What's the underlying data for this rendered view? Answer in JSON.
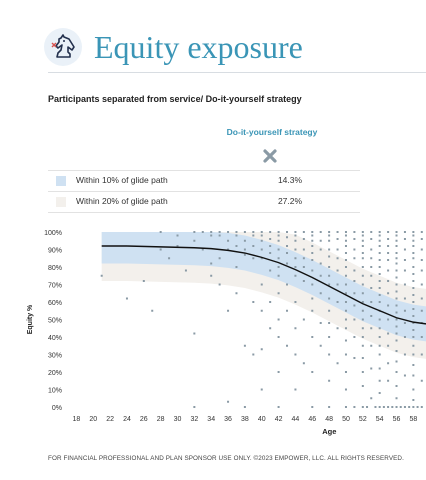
{
  "header": {
    "title": "Equity exposure",
    "logo_icon": "chess-knight-icon"
  },
  "subtitle": "Participants separated from service/ Do-it-yourself strategy",
  "table": {
    "column_header": "Do-it-yourself strategy",
    "column_icon": "x-mark-icon",
    "rows": [
      {
        "label": "Within 10% of glide path",
        "value": "14.3%",
        "color": "#cfe1f2"
      },
      {
        "label": "Within 20% of glide path",
        "value": "27.2%",
        "color": "#f3f0ec"
      }
    ]
  },
  "chart_data": {
    "type": "scatter",
    "ylabel": "Equity %",
    "xlabel": "Age",
    "xlim": [
      17,
      59.5
    ],
    "ylim": [
      0,
      100
    ],
    "x_ticks": [
      18,
      20,
      22,
      24,
      26,
      28,
      30,
      32,
      34,
      36,
      38,
      40,
      42,
      44,
      46,
      48,
      50,
      52,
      54,
      56,
      58
    ],
    "x_tick_labels": [
      "18",
      "20",
      "22",
      "24",
      "26",
      "28",
      "30",
      "32",
      "34",
      "36",
      "38",
      "40",
      "42",
      "44",
      "46",
      "48",
      "50",
      "52",
      "54",
      "56",
      "58"
    ],
    "y_ticks": [
      0,
      10,
      20,
      30,
      40,
      50,
      60,
      70,
      80,
      90,
      100
    ],
    "y_tick_labels": [
      "0%",
      "10%",
      "20%",
      "30%",
      "40%",
      "50%",
      "60%",
      "70%",
      "80%",
      "90%",
      "100%"
    ],
    "colors": {
      "glide_line": "#111111",
      "band_10": "#cfe1f2",
      "band_20": "#f3f0ec",
      "points": "#8a9aa5"
    },
    "glide_path": {
      "x": [
        21,
        24,
        28,
        32,
        34,
        36,
        38,
        40,
        42,
        44,
        46,
        48,
        50,
        52,
        54,
        56,
        58,
        59.5
      ],
      "y": [
        92,
        92,
        91.5,
        91,
        90.5,
        89.5,
        88,
        85.5,
        82.5,
        78.5,
        74,
        69,
        64,
        59,
        55,
        51,
        48.5,
        47.5
      ]
    },
    "band_10_halfwidth": 10,
    "band_20_halfwidth": 20,
    "points": [
      [
        21,
        75
      ],
      [
        24,
        62
      ],
      [
        26,
        72
      ],
      [
        27,
        55
      ],
      [
        28,
        100
      ],
      [
        28,
        90
      ],
      [
        29,
        85
      ],
      [
        30,
        98
      ],
      [
        30,
        92
      ],
      [
        31,
        78
      ],
      [
        32,
        100
      ],
      [
        32,
        95
      ],
      [
        32,
        42
      ],
      [
        32,
        0
      ],
      [
        33,
        100
      ],
      [
        33,
        90
      ],
      [
        34,
        100
      ],
      [
        34,
        98
      ],
      [
        34,
        82
      ],
      [
        34,
        75
      ],
      [
        35,
        100
      ],
      [
        35,
        98
      ],
      [
        35,
        85
      ],
      [
        35,
        70
      ],
      [
        36,
        100
      ],
      [
        36,
        95
      ],
      [
        36,
        90
      ],
      [
        36,
        55
      ],
      [
        36,
        3
      ],
      [
        37,
        100
      ],
      [
        37,
        98
      ],
      [
        37,
        92
      ],
      [
        37,
        80
      ],
      [
        37,
        65
      ],
      [
        38,
        100
      ],
      [
        38,
        95
      ],
      [
        38,
        90
      ],
      [
        38,
        87
      ],
      [
        38,
        35
      ],
      [
        38,
        0
      ],
      [
        39,
        100
      ],
      [
        39,
        98
      ],
      [
        39,
        92
      ],
      [
        39,
        85
      ],
      [
        39,
        60
      ],
      [
        39,
        30
      ],
      [
        40,
        100
      ],
      [
        40,
        98
      ],
      [
        40,
        95
      ],
      [
        40,
        90
      ],
      [
        40,
        85
      ],
      [
        40,
        70
      ],
      [
        40,
        55
      ],
      [
        40,
        33
      ],
      [
        40,
        10
      ],
      [
        41,
        100
      ],
      [
        41,
        96
      ],
      [
        41,
        92
      ],
      [
        41,
        88
      ],
      [
        41,
        78
      ],
      [
        41,
        60
      ],
      [
        41,
        45
      ],
      [
        42,
        100
      ],
      [
        42,
        98
      ],
      [
        42,
        95
      ],
      [
        42,
        90
      ],
      [
        42,
        85
      ],
      [
        42,
        80
      ],
      [
        42,
        75
      ],
      [
        42,
        65
      ],
      [
        42,
        50
      ],
      [
        42,
        40
      ],
      [
        42,
        20
      ],
      [
        42,
        0
      ],
      [
        43,
        100
      ],
      [
        43,
        97
      ],
      [
        43,
        92
      ],
      [
        43,
        88
      ],
      [
        43,
        82
      ],
      [
        43,
        70
      ],
      [
        43,
        55
      ],
      [
        43,
        35
      ],
      [
        44,
        100
      ],
      [
        44,
        98
      ],
      [
        44,
        95
      ],
      [
        44,
        90
      ],
      [
        44,
        85
      ],
      [
        44,
        80
      ],
      [
        44,
        75
      ],
      [
        44,
        60
      ],
      [
        44,
        45
      ],
      [
        44,
        30
      ],
      [
        44,
        10
      ],
      [
        45,
        100
      ],
      [
        45,
        96
      ],
      [
        45,
        90
      ],
      [
        45,
        85
      ],
      [
        45,
        80
      ],
      [
        45,
        72
      ],
      [
        45,
        50
      ],
      [
        45,
        25
      ],
      [
        46,
        100
      ],
      [
        46,
        98
      ],
      [
        46,
        95
      ],
      [
        46,
        92
      ],
      [
        46,
        88
      ],
      [
        46,
        84
      ],
      [
        46,
        78
      ],
      [
        46,
        70
      ],
      [
        46,
        62
      ],
      [
        46,
        55
      ],
      [
        46,
        40
      ],
      [
        46,
        20
      ],
      [
        46,
        0
      ],
      [
        47,
        100
      ],
      [
        47,
        95
      ],
      [
        47,
        90
      ],
      [
        47,
        82
      ],
      [
        47,
        75
      ],
      [
        47,
        65
      ],
      [
        47,
        48
      ],
      [
        47,
        35
      ],
      [
        48,
        100
      ],
      [
        48,
        98
      ],
      [
        48,
        95
      ],
      [
        48,
        90
      ],
      [
        48,
        86
      ],
      [
        48,
        80
      ],
      [
        48,
        75
      ],
      [
        48,
        70
      ],
      [
        48,
        62
      ],
      [
        48,
        55
      ],
      [
        48,
        48
      ],
      [
        48,
        40
      ],
      [
        48,
        30
      ],
      [
        48,
        15
      ],
      [
        48,
        0
      ],
      [
        49,
        100
      ],
      [
        49,
        96
      ],
      [
        49,
        90
      ],
      [
        49,
        85
      ],
      [
        49,
        78
      ],
      [
        49,
        70
      ],
      [
        49,
        60
      ],
      [
        49,
        45
      ],
      [
        49,
        25
      ],
      [
        50,
        100
      ],
      [
        50,
        98
      ],
      [
        50,
        95
      ],
      [
        50,
        92
      ],
      [
        50,
        88
      ],
      [
        50,
        84
      ],
      [
        50,
        80
      ],
      [
        50,
        75
      ],
      [
        50,
        70
      ],
      [
        50,
        65
      ],
      [
        50,
        60
      ],
      [
        50,
        55
      ],
      [
        50,
        50
      ],
      [
        50,
        45
      ],
      [
        50,
        38
      ],
      [
        50,
        30
      ],
      [
        50,
        20
      ],
      [
        50,
        10
      ],
      [
        50,
        0
      ],
      [
        51,
        100
      ],
      [
        51,
        96
      ],
      [
        51,
        90
      ],
      [
        51,
        85
      ],
      [
        51,
        78
      ],
      [
        51,
        72
      ],
      [
        51,
        65
      ],
      [
        51,
        58
      ],
      [
        51,
        50
      ],
      [
        51,
        40
      ],
      [
        51,
        28
      ],
      [
        51,
        0
      ],
      [
        52,
        100
      ],
      [
        52,
        98
      ],
      [
        52,
        95
      ],
      [
        52,
        92
      ],
      [
        52,
        88
      ],
      [
        52,
        85
      ],
      [
        52,
        80
      ],
      [
        52,
        75
      ],
      [
        52,
        70
      ],
      [
        52,
        65
      ],
      [
        52,
        60
      ],
      [
        52,
        55
      ],
      [
        52,
        50
      ],
      [
        52,
        45
      ],
      [
        52,
        40
      ],
      [
        52,
        35
      ],
      [
        52,
        28
      ],
      [
        52,
        20
      ],
      [
        52,
        12
      ],
      [
        52,
        0
      ],
      [
        53,
        100
      ],
      [
        53,
        96
      ],
      [
        53,
        90
      ],
      [
        53,
        85
      ],
      [
        53,
        80
      ],
      [
        53,
        75
      ],
      [
        53,
        68
      ],
      [
        53,
        60
      ],
      [
        53,
        52
      ],
      [
        53,
        45
      ],
      [
        53,
        35
      ],
      [
        53,
        22
      ],
      [
        53,
        5
      ],
      [
        54,
        100
      ],
      [
        54,
        98
      ],
      [
        54,
        95
      ],
      [
        54,
        92
      ],
      [
        54,
        88
      ],
      [
        54,
        84
      ],
      [
        54,
        80
      ],
      [
        54,
        76
      ],
      [
        54,
        72
      ],
      [
        54,
        68
      ],
      [
        54,
        64
      ],
      [
        54,
        60
      ],
      [
        54,
        55
      ],
      [
        54,
        50
      ],
      [
        54,
        45
      ],
      [
        54,
        40
      ],
      [
        54,
        35
      ],
      [
        54,
        30
      ],
      [
        54,
        22
      ],
      [
        54,
        15
      ],
      [
        54,
        8
      ],
      [
        54,
        0
      ],
      [
        55,
        100
      ],
      [
        55,
        96
      ],
      [
        55,
        92
      ],
      [
        55,
        88
      ],
      [
        55,
        84
      ],
      [
        55,
        78
      ],
      [
        55,
        72
      ],
      [
        55,
        65
      ],
      [
        55,
        58
      ],
      [
        55,
        50
      ],
      [
        55,
        42
      ],
      [
        55,
        35
      ],
      [
        55,
        25
      ],
      [
        55,
        15
      ],
      [
        55,
        0
      ],
      [
        56,
        100
      ],
      [
        56,
        98
      ],
      [
        56,
        95
      ],
      [
        56,
        92
      ],
      [
        56,
        88
      ],
      [
        56,
        85
      ],
      [
        56,
        82
      ],
      [
        56,
        78
      ],
      [
        56,
        74
      ],
      [
        56,
        70
      ],
      [
        56,
        66
      ],
      [
        56,
        62
      ],
      [
        56,
        58
      ],
      [
        56,
        54
      ],
      [
        56,
        50
      ],
      [
        56,
        46
      ],
      [
        56,
        42
      ],
      [
        56,
        38
      ],
      [
        56,
        32
      ],
      [
        56,
        26
      ],
      [
        56,
        20
      ],
      [
        56,
        12
      ],
      [
        56,
        5
      ],
      [
        56,
        0
      ],
      [
        57,
        100
      ],
      [
        57,
        96
      ],
      [
        57,
        90
      ],
      [
        57,
        84
      ],
      [
        57,
        78
      ],
      [
        57,
        70
      ],
      [
        57,
        62
      ],
      [
        57,
        55
      ],
      [
        57,
        48
      ],
      [
        57,
        40
      ],
      [
        57,
        30
      ],
      [
        57,
        18
      ],
      [
        57,
        0
      ],
      [
        58,
        100
      ],
      [
        58,
        98
      ],
      [
        58,
        95
      ],
      [
        58,
        92
      ],
      [
        58,
        88
      ],
      [
        58,
        85
      ],
      [
        58,
        80
      ],
      [
        58,
        76
      ],
      [
        58,
        72
      ],
      [
        58,
        68
      ],
      [
        58,
        64
      ],
      [
        58,
        60
      ],
      [
        58,
        56
      ],
      [
        58,
        52
      ],
      [
        58,
        48
      ],
      [
        58,
        44
      ],
      [
        58,
        40
      ],
      [
        58,
        35
      ],
      [
        58,
        30
      ],
      [
        58,
        24
      ],
      [
        58,
        18
      ],
      [
        58,
        10
      ],
      [
        58,
        4
      ],
      [
        58,
        0
      ],
      [
        59,
        100
      ],
      [
        59,
        96
      ],
      [
        59,
        90
      ],
      [
        59,
        84
      ],
      [
        59,
        78
      ],
      [
        59,
        70
      ],
      [
        59,
        62
      ],
      [
        59,
        55
      ],
      [
        59,
        48
      ],
      [
        59,
        40
      ],
      [
        59,
        30
      ],
      [
        59,
        15
      ],
      [
        59,
        0
      ],
      [
        55.5,
        0
      ],
      [
        56.5,
        0
      ],
      [
        57.5,
        0
      ],
      [
        58.5,
        0
      ],
      [
        54.5,
        0
      ],
      [
        53.5,
        0
      ],
      [
        52.5,
        0
      ]
    ]
  },
  "footer": "FOR FINANCIAL PROFESSIONAL AND PLAN SPONSOR USE ONLY. ©2023 EMPOWER, LLC. ALL RIGHTS RESERVED."
}
